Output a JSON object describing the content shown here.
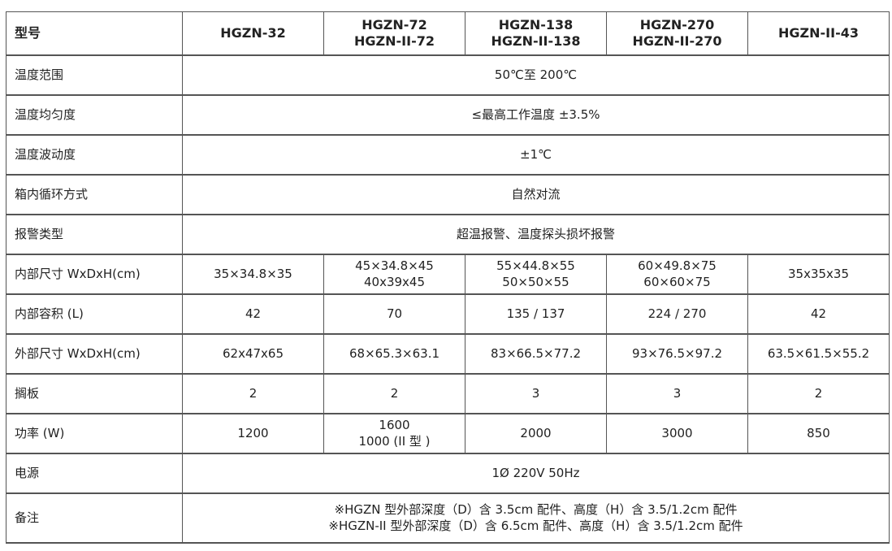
{
  "header": [
    "型号",
    "HGZN-32",
    "HGZN-72\nHGZN-II-72",
    "HGZN-138\nHGZN-II-138",
    "HGZN-270\nHGZN-II-270",
    "HGZN-II-43"
  ],
  "rows": [
    {
      "label": "温度范围",
      "span": "50℃至 200℃"
    },
    {
      "label": "温度均匀度",
      "span": "≤最高工作温度 ±3.5%"
    },
    {
      "label": "温度波动度",
      "span": "±1℃"
    },
    {
      "label": "箱内循环方式",
      "span": "自然对流"
    },
    {
      "label": "报警类型",
      "span": "超温报警、温度探头损坏报警"
    },
    {
      "label": "内部尺寸 WxDxH(cm)",
      "cells": [
        "35×34.8×35",
        "45×34.8×45\n40x39x45",
        "55×44.8×55\n50×50×55",
        "60×49.8×75\n60×60×75",
        "35x35x35"
      ]
    },
    {
      "label": "内部容积 (L)",
      "cells": [
        "42",
        "70",
        "135 / 137",
        "224 / 270",
        "42"
      ]
    },
    {
      "label": "外部尺寸 WxDxH(cm)",
      "cells": [
        "62x47x65",
        "68×65.3×63.1",
        "83×66.5×77.2",
        "93×76.5×97.2",
        "63.5×61.5×55.2"
      ]
    },
    {
      "label": "搁板",
      "cells": [
        "2",
        "2",
        "3",
        "3",
        "2"
      ]
    },
    {
      "label": "功率 (W)",
      "cells": [
        "1200",
        "1600\n1000 (II 型 )",
        "2000",
        "3000",
        "850"
      ]
    },
    {
      "label": "电源",
      "span": "1Ø 220V 50Hz"
    },
    {
      "label": "备注",
      "span": "※HGZN 型外部深度（D）含 3.5cm 配件、高度（H）含 3.5/1.2cm 配件\n※HGZN-II 型外部深度（D）含 6.5cm 配件、高度（H）含 3.5/1.2cm 配件",
      "note": true
    }
  ]
}
